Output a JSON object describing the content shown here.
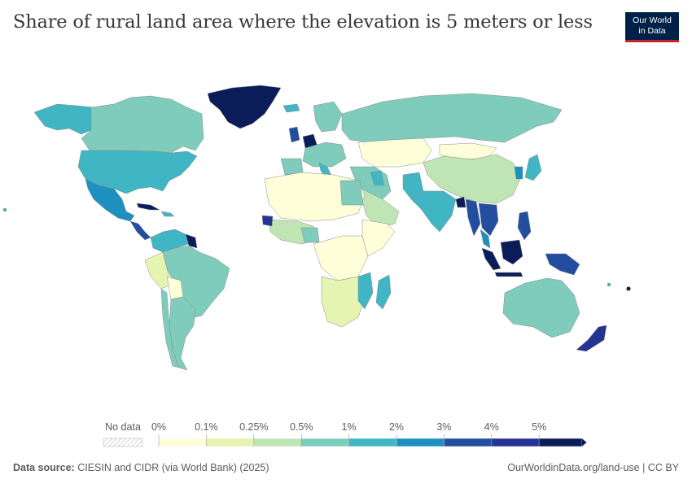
{
  "title": "Share of rural land area where the elevation is 5 meters or less",
  "logo": {
    "line1": "Our World",
    "line2": "in Data"
  },
  "legend": {
    "no_data_label": "No data",
    "tick_labels": [
      "0%",
      "0.1%",
      "0.25%",
      "0.5%",
      "1%",
      "2%",
      "3%",
      "4%",
      "5%"
    ],
    "colors": [
      "#fefed8",
      "#e6f4b2",
      "#bfe5b5",
      "#7fccbc",
      "#40b6c4",
      "#1e90c0",
      "#234ea0",
      "#243394",
      "#0a1d58"
    ]
  },
  "footer": {
    "source_label": "Data source:",
    "source_text": "CIESIN and CIDR (via World Bank) (2025)",
    "url_text": "OurWorldinData.org/land-use | CC BY"
  },
  "colors": {
    "map_border": "#a8a8a8",
    "text": "#5b5b5b",
    "logo_bg": "#002147",
    "logo_accent": "#c8222b"
  }
}
